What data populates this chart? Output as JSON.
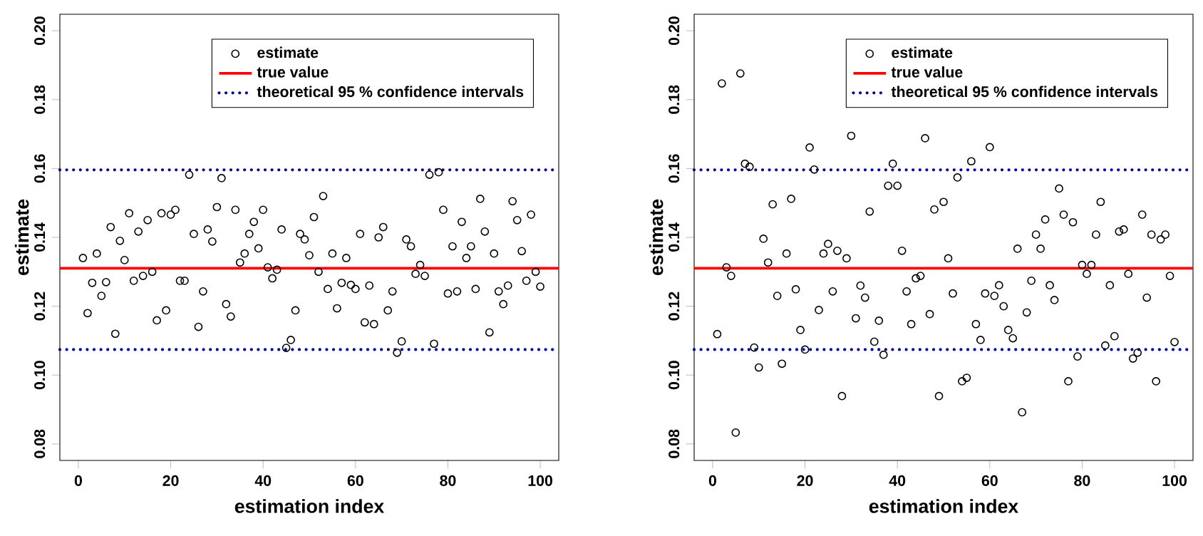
{
  "chart_data": [
    {
      "type": "scatter",
      "xlabel": "estimation index",
      "ylabel": "estimate",
      "xlim": [
        -4,
        104
      ],
      "ylim": [
        0.0752,
        0.2048
      ],
      "xticks": [
        0,
        20,
        40,
        60,
        80,
        100
      ],
      "yticks": [
        {
          "value": 0.08,
          "label": "0.08"
        },
        {
          "value": 0.1,
          "label": "0.10"
        },
        {
          "value": 0.12,
          "label": "0.12"
        },
        {
          "value": 0.14,
          "label": "0.14"
        },
        {
          "value": 0.16,
          "label": "0.16"
        },
        {
          "value": 0.18,
          "label": "0.18"
        },
        {
          "value": 0.2,
          "label": "0.20"
        }
      ],
      "marker": "circle",
      "legend": "top right",
      "series": [
        {
          "name": "estimate",
          "color": "#000000",
          "x": [
            1,
            2,
            3,
            4,
            5,
            6,
            7,
            8,
            9,
            10,
            11,
            12,
            13,
            14,
            15,
            16,
            17,
            18,
            19,
            20,
            21,
            22,
            23,
            24,
            25,
            26,
            27,
            28,
            29,
            30,
            31,
            32,
            33,
            34,
            35,
            36,
            37,
            38,
            39,
            40,
            41,
            42,
            43,
            44,
            45,
            46,
            47,
            48,
            49,
            50,
            51,
            52,
            53,
            54,
            55,
            56,
            57,
            58,
            59,
            60,
            61,
            62,
            63,
            64,
            65,
            66,
            67,
            68,
            69,
            70,
            71,
            72,
            73,
            74,
            75,
            76,
            77,
            78,
            79,
            80,
            81,
            82,
            83,
            84,
            85,
            86,
            87,
            88,
            89,
            90,
            91,
            92,
            93,
            94,
            95,
            96,
            97,
            98,
            99,
            100
          ],
          "values": [
            0.134,
            0.118,
            0.1268,
            0.1353,
            0.123,
            0.127,
            0.143,
            0.112,
            0.139,
            0.1334,
            0.147,
            0.1274,
            0.1417,
            0.1288,
            0.145,
            0.13,
            0.1159,
            0.147,
            0.1188,
            0.1466,
            0.148,
            0.1274,
            0.1274,
            0.1582,
            0.141,
            0.114,
            0.1243,
            0.1423,
            0.1388,
            0.1488,
            0.1572,
            0.1206,
            0.117,
            0.148,
            0.1327,
            0.1353,
            0.141,
            0.1445,
            0.1368,
            0.148,
            0.1313,
            0.1281,
            0.1306,
            0.1423,
            0.1079,
            0.1102,
            0.1188,
            0.141,
            0.1394,
            0.1348,
            0.1459,
            0.13,
            0.152,
            0.125,
            0.1353,
            0.1194,
            0.1268,
            0.134,
            0.1262,
            0.125,
            0.141,
            0.1153,
            0.126,
            0.1148,
            0.14,
            0.143,
            0.1188,
            0.1243,
            0.1065,
            0.1098,
            0.1394,
            0.1374,
            0.1294,
            0.132,
            0.1288,
            0.1582,
            0.1091,
            0.1589,
            0.148,
            0.1237,
            0.1374,
            0.1243,
            0.1445,
            0.134,
            0.1374,
            0.125,
            0.1512,
            0.1417,
            0.1124,
            0.1353,
            0.1243,
            0.1206,
            0.126,
            0.1505,
            0.145,
            0.136,
            0.1274,
            0.1466,
            0.13,
            0.1257
          ]
        }
      ],
      "ref_lines": [
        {
          "axis": "y",
          "value": 0.131,
          "label": "true value",
          "color": "#ff0000",
          "line_style": "solid"
        },
        {
          "axis": "y",
          "value": 0.1596,
          "label": "theoretical 95 % confidence intervals",
          "color": "#00009c",
          "line_style": "dotted"
        },
        {
          "axis": "y",
          "value": 0.1074,
          "color": "#00009c",
          "line_style": "dotted"
        }
      ]
    },
    {
      "type": "scatter",
      "xlabel": "estimation index",
      "ylabel": "estimate",
      "xlim": [
        -4,
        104
      ],
      "ylim": [
        0.0752,
        0.2048
      ],
      "xticks": [
        0,
        20,
        40,
        60,
        80,
        100
      ],
      "yticks": [
        {
          "value": 0.08,
          "label": "0.08"
        },
        {
          "value": 0.1,
          "label": "0.10"
        },
        {
          "value": 0.12,
          "label": "0.12"
        },
        {
          "value": 0.14,
          "label": "0.14"
        },
        {
          "value": 0.16,
          "label": "0.16"
        },
        {
          "value": 0.18,
          "label": "0.18"
        },
        {
          "value": 0.2,
          "label": "0.20"
        }
      ],
      "marker": "circle",
      "legend": "top right",
      "series": [
        {
          "name": "estimate",
          "color": "#000000",
          "x": [
            1,
            2,
            3,
            4,
            5,
            6,
            7,
            8,
            9,
            10,
            11,
            12,
            13,
            14,
            15,
            16,
            17,
            18,
            19,
            20,
            21,
            22,
            23,
            24,
            25,
            26,
            27,
            28,
            29,
            30,
            31,
            32,
            33,
            34,
            35,
            36,
            37,
            38,
            39,
            40,
            41,
            42,
            43,
            44,
            45,
            46,
            47,
            48,
            49,
            50,
            51,
            52,
            53,
            54,
            55,
            56,
            57,
            58,
            59,
            60,
            61,
            62,
            63,
            64,
            65,
            66,
            67,
            68,
            69,
            70,
            71,
            72,
            73,
            74,
            75,
            76,
            77,
            78,
            79,
            80,
            81,
            82,
            83,
            84,
            85,
            86,
            87,
            88,
            89,
            90,
            91,
            92,
            93,
            94,
            95,
            96,
            97,
            98,
            99,
            100
          ],
          "values": [
            0.1119,
            0.1847,
            0.1313,
            0.1288,
            0.0833,
            0.1876,
            0.1614,
            0.1605,
            0.108,
            0.1022,
            0.1396,
            0.1327,
            0.1496,
            0.123,
            0.1033,
            0.1353,
            0.1512,
            0.1249,
            0.1131,
            0.1074,
            0.1661,
            0.1597,
            0.1189,
            0.1353,
            0.1381,
            0.1243,
            0.1361,
            0.0939,
            0.1339,
            0.1695,
            0.1165,
            0.126,
            0.1225,
            0.1475,
            0.1097,
            0.1158,
            0.1059,
            0.155,
            0.1614,
            0.155,
            0.1361,
            0.1243,
            0.1148,
            0.1281,
            0.1288,
            0.1688,
            0.1177,
            0.1481,
            0.0939,
            0.1503,
            0.1339,
            0.1237,
            0.1574,
            0.0982,
            0.0992,
            0.1621,
            0.1148,
            0.1102,
            0.1237,
            0.1662,
            0.123,
            0.1261,
            0.12,
            0.1131,
            0.1107,
            0.1367,
            0.0892,
            0.1182,
            0.1274,
            0.1408,
            0.1367,
            0.1452,
            0.1261,
            0.1218,
            0.1542,
            0.1466,
            0.0982,
            0.1444,
            0.1054,
            0.132,
            0.1294,
            0.132,
            0.1408,
            0.1503,
            0.1086,
            0.1261,
            0.1113,
            0.1417,
            0.1423,
            0.1294,
            0.1048,
            0.1065,
            0.1466,
            0.1225,
            0.1408,
            0.0982,
            0.1394,
            0.1408,
            0.1288,
            0.1096
          ]
        }
      ],
      "ref_lines": [
        {
          "axis": "y",
          "value": 0.131,
          "label": "true value",
          "color": "#ff0000",
          "line_style": "solid"
        },
        {
          "axis": "y",
          "value": 0.1596,
          "label": "theoretical 95 % confidence intervals",
          "color": "#00009c",
          "line_style": "dotted"
        },
        {
          "axis": "y",
          "value": 0.1074,
          "color": "#00009c",
          "line_style": "dotted"
        }
      ]
    }
  ]
}
